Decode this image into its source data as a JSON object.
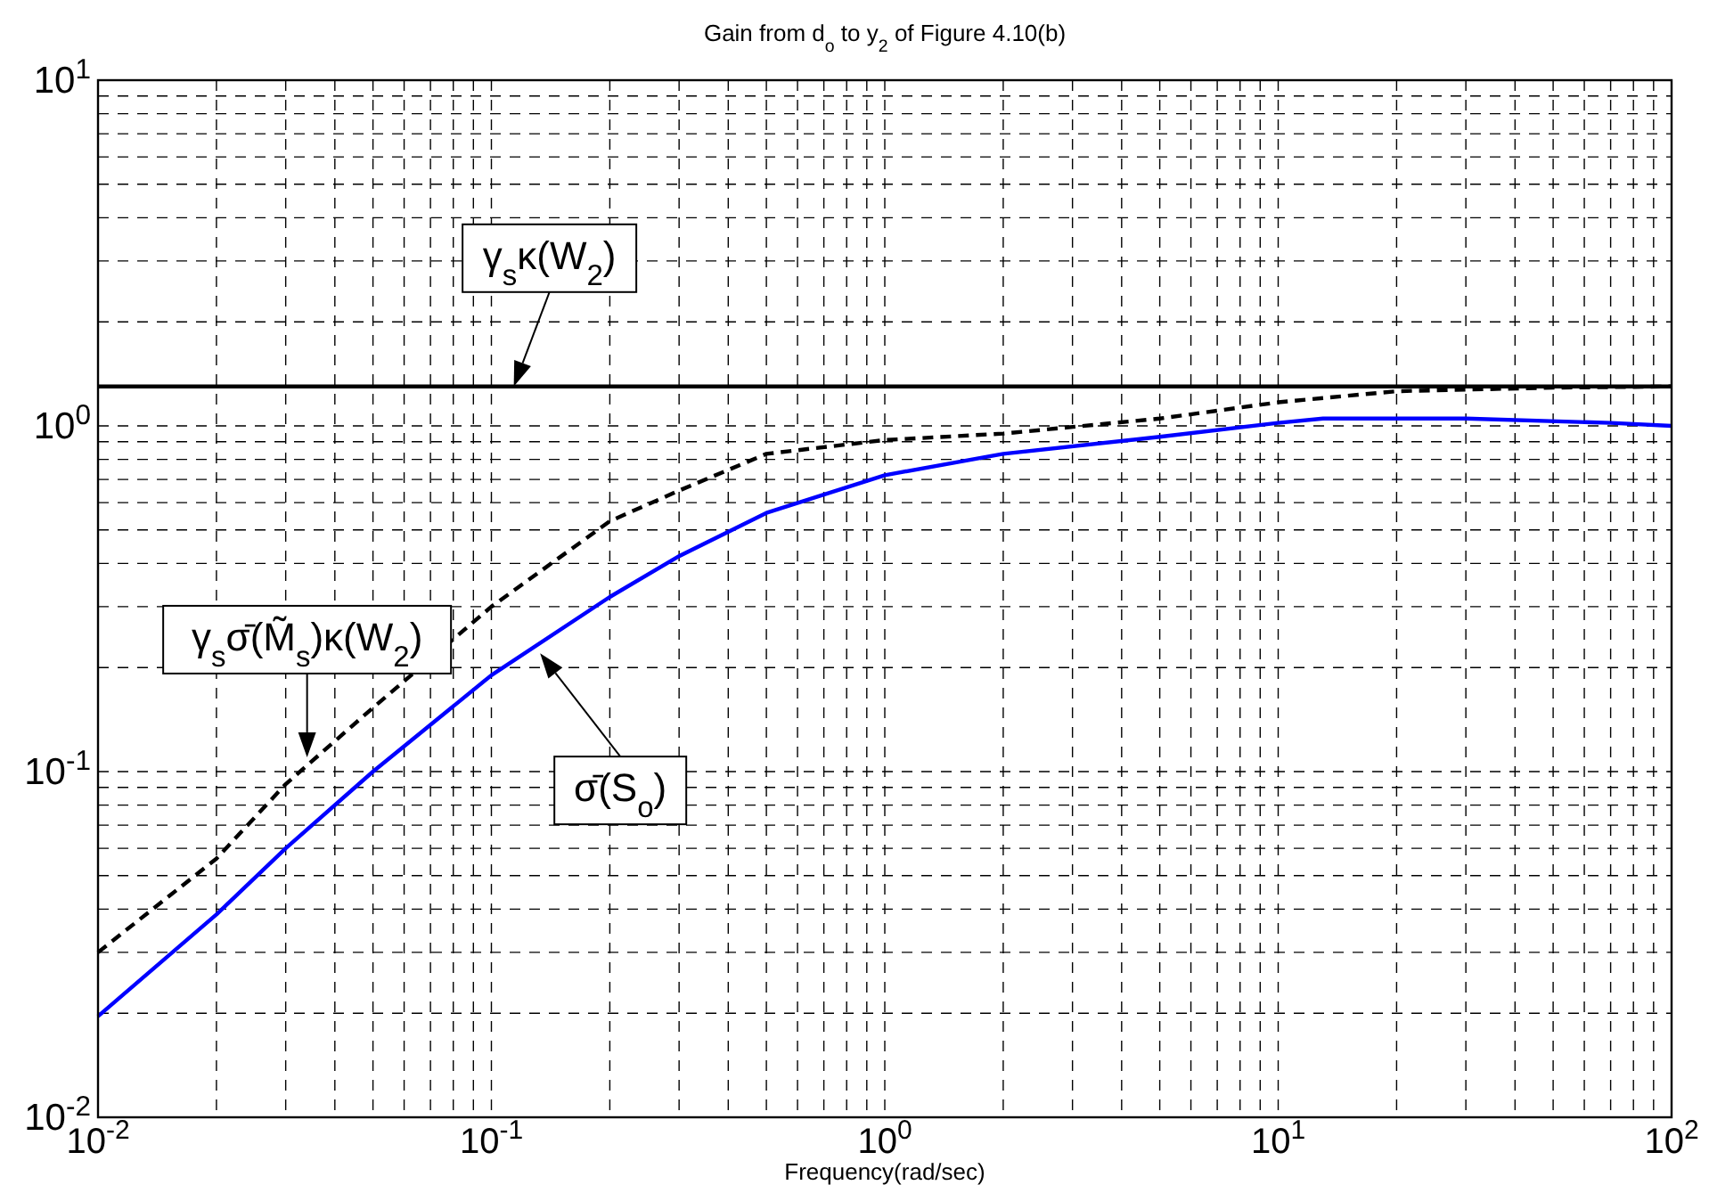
{
  "chart_data": {
    "type": "line",
    "title": "Gain from d$_{o}$ to y$_{2}$ of Figure 4.10(b)",
    "xlabel": "Frequency(rad/sec)",
    "log": "xy",
    "grid": true,
    "legend": false,
    "xlim": [
      0.01,
      100
    ],
    "ylim": [
      0.01,
      10
    ],
    "xticks": [
      {
        "value": 0.01,
        "label": "10$^{-2}$"
      },
      {
        "value": 0.1,
        "label": "10$^{-1}$"
      },
      {
        "value": 1,
        "label": "10$^{0}$"
      },
      {
        "value": 10,
        "label": "10$^{1}$"
      },
      {
        "value": 100,
        "label": "10$^{2}$"
      }
    ],
    "yticks": [
      {
        "value": 0.01,
        "label": "10$^{-2}$"
      },
      {
        "value": 0.1,
        "label": "10$^{-1}$"
      },
      {
        "value": 1,
        "label": "10$^{0}$"
      },
      {
        "value": 10,
        "label": "10$^{1}$"
      }
    ],
    "series": [
      {
        "color": "#000000",
        "line_style": "solid",
        "x": [
          0.01,
          100
        ],
        "values": [
          1.3,
          1.3
        ]
      },
      {
        "color": "#000000",
        "line_style": "dashed",
        "x": [
          0.01,
          0.02,
          0.03,
          0.05,
          0.1,
          0.2,
          0.3,
          0.5,
          1,
          2,
          5,
          10,
          20,
          50,
          100
        ],
        "values": [
          0.03,
          0.056,
          0.092,
          0.153,
          0.3,
          0.53,
          0.65,
          0.83,
          0.91,
          0.95,
          1.05,
          1.17,
          1.26,
          1.29,
          1.3
        ]
      },
      {
        "color": "#0000ff",
        "line_style": "solid",
        "x": [
          0.01,
          0.02,
          0.03,
          0.05,
          0.1,
          0.2,
          0.3,
          0.5,
          1,
          2,
          5,
          10,
          13,
          30,
          70,
          100
        ],
        "values": [
          0.0196,
          0.0386,
          0.06,
          0.1,
          0.19,
          0.32,
          0.42,
          0.56,
          0.72,
          0.83,
          0.93,
          1.02,
          1.05,
          1.05,
          1.02,
          1.0
        ]
      }
    ],
    "annotations": [
      {
        "text": "γ$_{s}$κ(W$_{2}$)",
        "x": 0.114,
        "y": 1.3
      },
      {
        "text": "γ$_{s}$σ̄(M̃$_{s}$)κ(W$_{2}$)",
        "x": 0.034,
        "y": 0.11
      },
      {
        "text": "σ̄(S$_{o}$)",
        "x": 0.133,
        "y": 0.22
      }
    ]
  }
}
